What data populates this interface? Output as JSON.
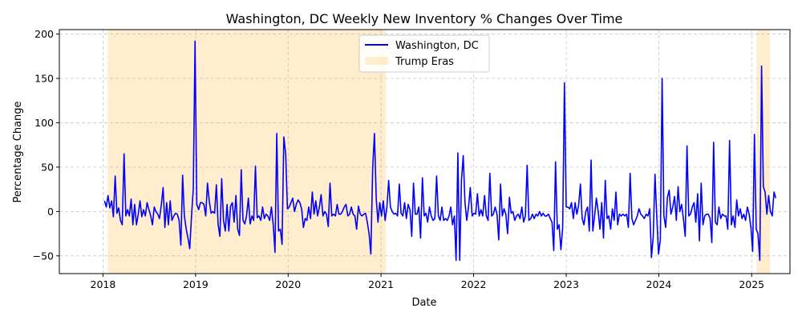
{
  "chart_data": {
    "type": "line",
    "title": "Washington, DC Weekly New Inventory % Changes Over Time",
    "xlabel": "Date",
    "ylabel": "Percentage Change",
    "xlim": [
      "2017-07-13",
      "2025-06-01"
    ],
    "ylim": [
      -70,
      205
    ],
    "x_ticks": [
      "2018",
      "2019",
      "2020",
      "2021",
      "2022",
      "2023",
      "2024",
      "2025"
    ],
    "y_ticks": [
      -50,
      0,
      50,
      100,
      150,
      200
    ],
    "grid": true,
    "legend_position": "top-center",
    "colors": {
      "line": "#0000ff",
      "shade": "#ffe5b8"
    },
    "shaded_regions": [
      {
        "name": "Trump Eras",
        "start": "2018-01-20",
        "end": "2021-01-20"
      },
      {
        "name": "Trump Eras",
        "start": "2025-01-20",
        "end": "2025-03-15"
      }
    ],
    "series": [
      {
        "name": "Washington, DC",
        "start": "2018-01-07",
        "interval_days": 7,
        "values": [
          12,
          5,
          18,
          4,
          12,
          -6,
          40,
          -2,
          4,
          -10,
          -15,
          65,
          -5,
          2,
          -5,
          14,
          -15,
          8,
          -15,
          -3,
          12,
          -6,
          2,
          -5,
          10,
          2,
          -5,
          -15,
          5,
          0,
          -3,
          -8,
          8,
          27,
          -18,
          10,
          -15,
          12,
          -10,
          -5,
          -2,
          -3,
          -10,
          -38,
          41,
          -5,
          -20,
          -30,
          -42,
          -5,
          25,
          192,
          8,
          2,
          10,
          10,
          8,
          -5,
          32,
          12,
          -2,
          0,
          -2,
          30,
          -15,
          -28,
          37,
          -10,
          -22,
          8,
          -22,
          6,
          10,
          -12,
          18,
          -20,
          -27,
          47,
          -10,
          -14,
          -5,
          15,
          -14,
          -5,
          -10,
          51,
          -7,
          -5,
          -10,
          5,
          -8,
          -3,
          -5,
          -10,
          5,
          -15,
          -46,
          88,
          -22,
          -20,
          -37,
          84,
          65,
          3,
          5,
          10,
          15,
          0,
          8,
          13,
          10,
          3,
          -18,
          -8,
          -10,
          5,
          -8,
          22,
          -3,
          12,
          -5,
          5,
          19,
          -5,
          0,
          -3,
          -17,
          32,
          -5,
          -3,
          -5,
          8,
          -3,
          -3,
          0,
          5,
          8,
          -5,
          -3,
          5,
          -3,
          -5,
          -20,
          6,
          -3,
          -5,
          -3,
          -2,
          -12,
          -25,
          -48,
          49,
          88,
          15,
          -12,
          10,
          -5,
          12,
          -10,
          5,
          35,
          5,
          0,
          -3,
          -2,
          -5,
          31,
          -2,
          -5,
          10,
          -8,
          8,
          2,
          -28,
          32,
          -3,
          -3,
          5,
          -30,
          38,
          -5,
          -2,
          -12,
          5,
          -5,
          -10,
          -8,
          40,
          -5,
          -10,
          5,
          -10,
          -8,
          -10,
          -5,
          5,
          -15,
          -5,
          -55,
          66,
          -55,
          35,
          63,
          10,
          -10,
          5,
          27,
          -5,
          -2,
          -3,
          20,
          -5,
          2,
          -5,
          18,
          -5,
          -10,
          43,
          -5,
          -3,
          5,
          -3,
          -32,
          31,
          -5,
          3,
          -3,
          -25,
          16,
          -2,
          0,
          -10,
          -5,
          -3,
          -8,
          5,
          -12,
          -5,
          52,
          -10,
          -8,
          -3,
          -8,
          -3,
          -5,
          0,
          -5,
          -2,
          -5,
          -5,
          -3,
          -8,
          -12,
          -44,
          56,
          -20,
          -15,
          -43,
          -18,
          145,
          5,
          5,
          3,
          10,
          -8,
          10,
          -3,
          7,
          31,
          -8,
          -15,
          0,
          5,
          -22,
          58,
          -22,
          -5,
          15,
          0,
          -20,
          10,
          -30,
          35,
          -8,
          -5,
          -20,
          3,
          -10,
          22,
          -15,
          -3,
          -5,
          -3,
          -5,
          -3,
          -18,
          43,
          -8,
          -15,
          -10,
          -5,
          3,
          -3,
          -5,
          -8,
          -3,
          -5,
          3,
          -52,
          -28,
          42,
          -5,
          -48,
          -32,
          150,
          -5,
          -18,
          16,
          24,
          -3,
          5,
          17,
          -10,
          28,
          0,
          8,
          -8,
          -28,
          74,
          -5,
          -3,
          5,
          10,
          -12,
          20,
          -33,
          32,
          -15,
          -5,
          -3,
          -3,
          -8,
          -35,
          78,
          -12,
          -15,
          5,
          -8,
          -3,
          -5,
          -5,
          -20,
          80,
          -15,
          -5,
          -18,
          13,
          -5,
          3,
          -8,
          -3,
          -10,
          5,
          -3,
          -18,
          -45,
          87,
          -20,
          -25,
          -55,
          164,
          28,
          22,
          -3,
          18,
          0,
          -5,
          22,
          15
        ]
      }
    ]
  }
}
